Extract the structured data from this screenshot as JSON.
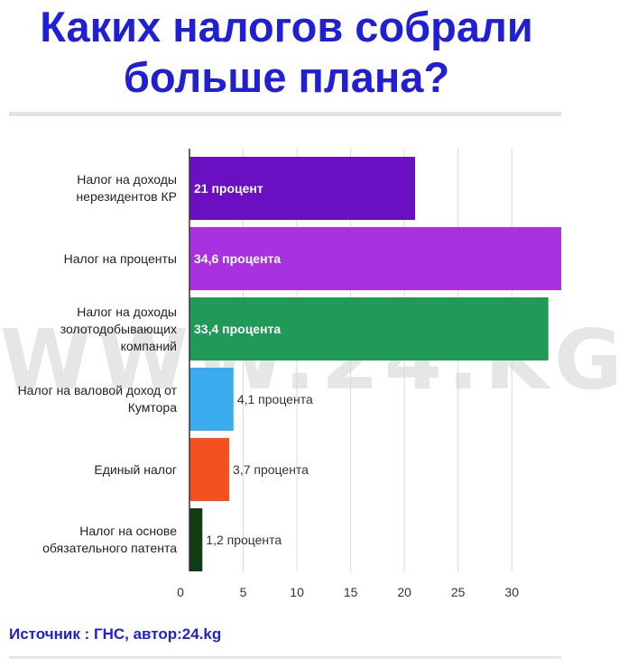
{
  "title": "Каких налогов собрали больше плана?",
  "source": "Источник : ГНС, автор:24.kg",
  "watermark": "WWW.24.KG",
  "chart_data": {
    "type": "bar",
    "orientation": "horizontal",
    "categories": [
      "Налог на доходы нерезидентов КР",
      "Налог на проценты",
      "Налог на доходы золотодобывающих компаний",
      "Налог на валовой доход от Кумтора",
      "Единый налог",
      "Налог на основе обязательного патента"
    ],
    "values": [
      21,
      34.6,
      33.4,
      4.1,
      3.7,
      1.2
    ],
    "data_labels": [
      "21 процент",
      "34,6 процента",
      "33,4 процента",
      "4,1 процента",
      "3,7 процента",
      "1,2 процента"
    ],
    "colors": [
      "#6a0fc2",
      "#a932e0",
      "#1f9a57",
      "#3aacee",
      "#f4511e",
      "#103c13"
    ],
    "xticks": [
      0,
      5,
      10,
      15,
      20,
      25,
      30
    ],
    "xlim": [
      0,
      34.6
    ],
    "grid": true
  }
}
